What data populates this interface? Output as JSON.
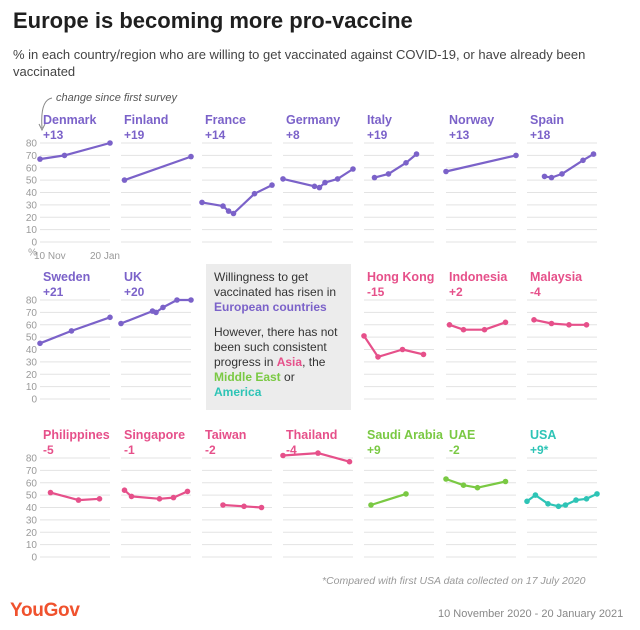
{
  "title": "Europe is becoming more pro-vaccine",
  "subtitle": "% in each country/region who are willing to get vaccinated against COVID-19, or have already been vaccinated",
  "annotation": "change since first survey",
  "note": {
    "p1_pre": "Willingness to get vaccinated has risen in ",
    "p1_highlight": "European countries",
    "p2_pre": "However, there has not been such consistent progress in ",
    "p2_asia": "Asia",
    "p2_mid": ", the ",
    "p2_me": "Middle East",
    "p2_or": " or ",
    "p2_am": "America"
  },
  "footnote": "*Compared with first USA data collected on 17 July 2020",
  "logo": "YouGov",
  "date_range": "10 November 2020 - 20 January 2021",
  "colors": {
    "europe": "#7b62c9",
    "asia": "#e6508a",
    "middle_east": "#7ac943",
    "america": "#2ec4b6",
    "grid": "#e3e3e3",
    "axis_text": "#9a9a9a"
  },
  "chart_data": {
    "type": "line",
    "layout": "small-multiples",
    "y_axis": {
      "ylim": [
        0,
        80
      ],
      "ticks": [
        0,
        10,
        20,
        30,
        40,
        50,
        60,
        70,
        80
      ],
      "tick_suffix": "",
      "last_tick_label": "%"
    },
    "x_axis": {
      "range": [
        "10 Nov",
        "20 Jan"
      ],
      "ticks": [
        "10 Nov",
        "20 Jan"
      ]
    },
    "panels": [
      {
        "name": "Denmark",
        "change": "+13",
        "region": "europe",
        "points": [
          [
            0,
            67
          ],
          [
            0.35,
            70
          ],
          [
            1,
            80
          ]
        ]
      },
      {
        "name": "Finland",
        "change": "+19",
        "region": "europe",
        "points": [
          [
            0.05,
            50
          ],
          [
            1,
            69
          ]
        ]
      },
      {
        "name": "France",
        "change": "+14",
        "region": "europe",
        "points": [
          [
            0,
            32
          ],
          [
            0.3,
            29
          ],
          [
            0.38,
            25
          ],
          [
            0.45,
            23
          ],
          [
            0.75,
            39
          ],
          [
            1,
            46
          ]
        ]
      },
      {
        "name": "Germany",
        "change": "+8",
        "region": "europe",
        "points": [
          [
            0,
            51
          ],
          [
            0.45,
            45
          ],
          [
            0.52,
            44
          ],
          [
            0.6,
            48
          ],
          [
            0.78,
            51
          ],
          [
            1,
            59
          ]
        ]
      },
      {
        "name": "Italy",
        "change": "+19",
        "region": "europe",
        "points": [
          [
            0.15,
            52
          ],
          [
            0.35,
            55
          ],
          [
            0.6,
            64
          ],
          [
            0.75,
            71
          ]
        ]
      },
      {
        "name": "Norway",
        "change": "+13",
        "region": "europe",
        "points": [
          [
            0,
            57
          ],
          [
            1,
            70
          ]
        ]
      },
      {
        "name": "Spain",
        "change": "+18",
        "region": "europe",
        "points": [
          [
            0.25,
            53
          ],
          [
            0.35,
            52
          ],
          [
            0.5,
            55
          ],
          [
            0.8,
            66
          ],
          [
            0.95,
            71
          ]
        ]
      },
      {
        "name": "Sweden",
        "change": "+21",
        "region": "europe",
        "points": [
          [
            0,
            45
          ],
          [
            0.45,
            55
          ],
          [
            1,
            66
          ]
        ]
      },
      {
        "name": "UK",
        "change": "+20",
        "region": "europe",
        "points": [
          [
            0,
            61
          ],
          [
            0.45,
            71
          ],
          [
            0.5,
            70
          ],
          [
            0.6,
            74
          ],
          [
            0.8,
            80
          ],
          [
            1,
            80
          ]
        ]
      },
      {
        "name": "Hong Kong",
        "change": "-15",
        "region": "asia",
        "points": [
          [
            0,
            51
          ],
          [
            0.2,
            34
          ],
          [
            0.55,
            40
          ],
          [
            0.85,
            36
          ]
        ]
      },
      {
        "name": "Indonesia",
        "change": "+2",
        "region": "asia",
        "points": [
          [
            0.05,
            60
          ],
          [
            0.25,
            56
          ],
          [
            0.55,
            56
          ],
          [
            0.85,
            62
          ]
        ]
      },
      {
        "name": "Malaysia",
        "change": "-4",
        "region": "asia",
        "points": [
          [
            0.1,
            64
          ],
          [
            0.35,
            61
          ],
          [
            0.6,
            60
          ],
          [
            0.85,
            60
          ]
        ]
      },
      {
        "name": "Philippines",
        "change": "-5",
        "region": "asia",
        "points": [
          [
            0.15,
            52
          ],
          [
            0.55,
            46
          ],
          [
            0.85,
            47
          ]
        ]
      },
      {
        "name": "Singapore",
        "change": "-1",
        "region": "asia",
        "points": [
          [
            0.05,
            54
          ],
          [
            0.15,
            49
          ],
          [
            0.55,
            47
          ],
          [
            0.75,
            48
          ],
          [
            0.95,
            53
          ]
        ]
      },
      {
        "name": "Taiwan",
        "change": "-2",
        "region": "asia",
        "points": [
          [
            0.3,
            42
          ],
          [
            0.6,
            41
          ],
          [
            0.85,
            40
          ]
        ]
      },
      {
        "name": "Thailand",
        "change": "-4",
        "region": "asia",
        "points": [
          [
            0,
            82
          ],
          [
            0.5,
            84
          ],
          [
            0.95,
            77
          ]
        ]
      },
      {
        "name": "Saudi Arabia",
        "change": "+9",
        "region": "middle_east",
        "points": [
          [
            0.1,
            42
          ],
          [
            0.6,
            51
          ]
        ]
      },
      {
        "name": "UAE",
        "change": "-2",
        "region": "middle_east",
        "points": [
          [
            0,
            63
          ],
          [
            0.25,
            58
          ],
          [
            0.45,
            56
          ],
          [
            0.85,
            61
          ]
        ]
      },
      {
        "name": "USA",
        "change": "+9*",
        "region": "america",
        "points": [
          [
            0,
            45
          ],
          [
            0.12,
            50
          ],
          [
            0.3,
            43
          ],
          [
            0.45,
            41
          ],
          [
            0.55,
            42
          ],
          [
            0.7,
            46
          ],
          [
            0.85,
            47
          ],
          [
            1,
            51
          ]
        ]
      }
    ]
  }
}
